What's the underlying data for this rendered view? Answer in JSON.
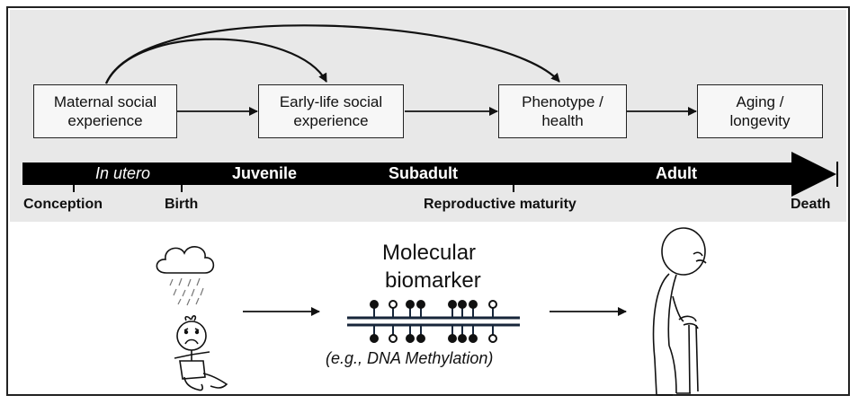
{
  "boxes": {
    "maternal": "Maternal social\nexperience",
    "early_life": "Early-life social\nexperience",
    "phenotype": "Phenotype /\nhealth",
    "aging": "Aging /\nlongevity"
  },
  "timeline": {
    "stages": {
      "in_utero": "In utero",
      "juvenile": "Juvenile",
      "subadult": "Subadult",
      "adult": "Adult"
    },
    "milestones": {
      "conception": "Conception",
      "birth": "Birth",
      "reproductive_maturity": "Reproductive maturity",
      "death": "Death"
    }
  },
  "bottom": {
    "biomarker_line1": "Molecular",
    "biomarker_line2": "biomarker",
    "example": "(e.g., DNA Methylation)"
  },
  "icons": {
    "cloud": "storm-cloud-icon",
    "child": "sad-child-icon",
    "dna": "dna-methylation-icon",
    "elder": "elderly-person-with-cane-icon"
  }
}
